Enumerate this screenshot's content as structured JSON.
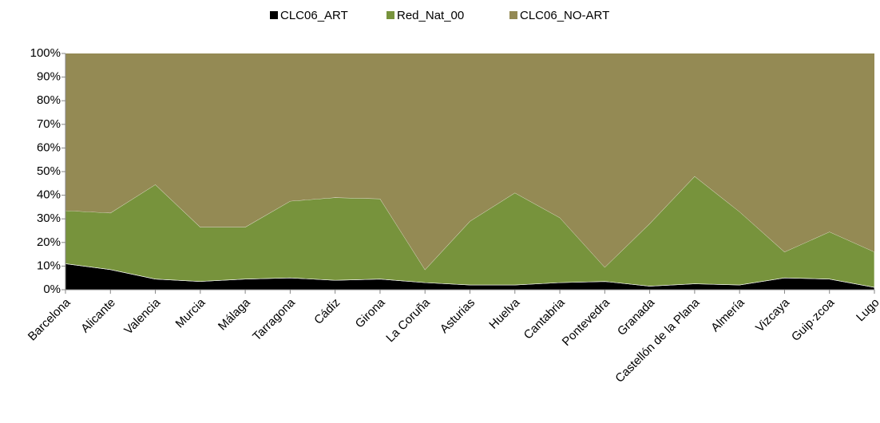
{
  "chart_data": {
    "type": "stacked_area",
    "categories": [
      "Barcelona",
      "Alicante",
      "Valencia",
      "Murcia",
      "Málaga",
      "Tarragona",
      "Cádiz",
      "Girona",
      "La Coruña",
      "Asturias",
      "Huelva",
      "Cantabria",
      "Pontevedra",
      "Granada",
      "Castellón de la Plana",
      "Almería",
      "Vizcaya",
      "Guip·zcoa",
      "Lugo"
    ],
    "series": [
      {
        "name": "CLC06_ART",
        "color": "#000000",
        "values": [
          11,
          8.5,
          4.5,
          3.5,
          4.5,
          5,
          4,
          4.5,
          3,
          2,
          2,
          3,
          3.5,
          1.5,
          2.5,
          2,
          5,
          4.5,
          1
        ]
      },
      {
        "name": "Red_Nat_00",
        "color": "#77933c",
        "values": [
          22.5,
          24,
          40,
          23,
          22,
          32.5,
          35,
          34,
          5.5,
          27,
          39,
          27.5,
          6,
          26.5,
          45.5,
          31,
          11,
          20,
          15
        ]
      },
      {
        "name": "CLC06_NO-ART",
        "color": "#948a54",
        "values": [
          66.5,
          67.5,
          55.5,
          73.5,
          73.5,
          62.5,
          61,
          61.5,
          91.5,
          71,
          59,
          69.5,
          90.5,
          72,
          52,
          67,
          84,
          75.5,
          84
        ]
      }
    ],
    "ylim": [
      0,
      100
    ],
    "yticks": [
      {
        "value": 0,
        "label": "0%"
      },
      {
        "value": 10,
        "label": "10%"
      },
      {
        "value": 20,
        "label": "20%"
      },
      {
        "value": 30,
        "label": "30%"
      },
      {
        "value": 40,
        "label": "40%"
      },
      {
        "value": 50,
        "label": "50%"
      },
      {
        "value": 60,
        "label": "60%"
      },
      {
        "value": 70,
        "label": "70%"
      },
      {
        "value": 80,
        "label": "80%"
      },
      {
        "value": 90,
        "label": "90%"
      },
      {
        "value": 100,
        "label": "100%"
      }
    ],
    "legend": "top"
  }
}
